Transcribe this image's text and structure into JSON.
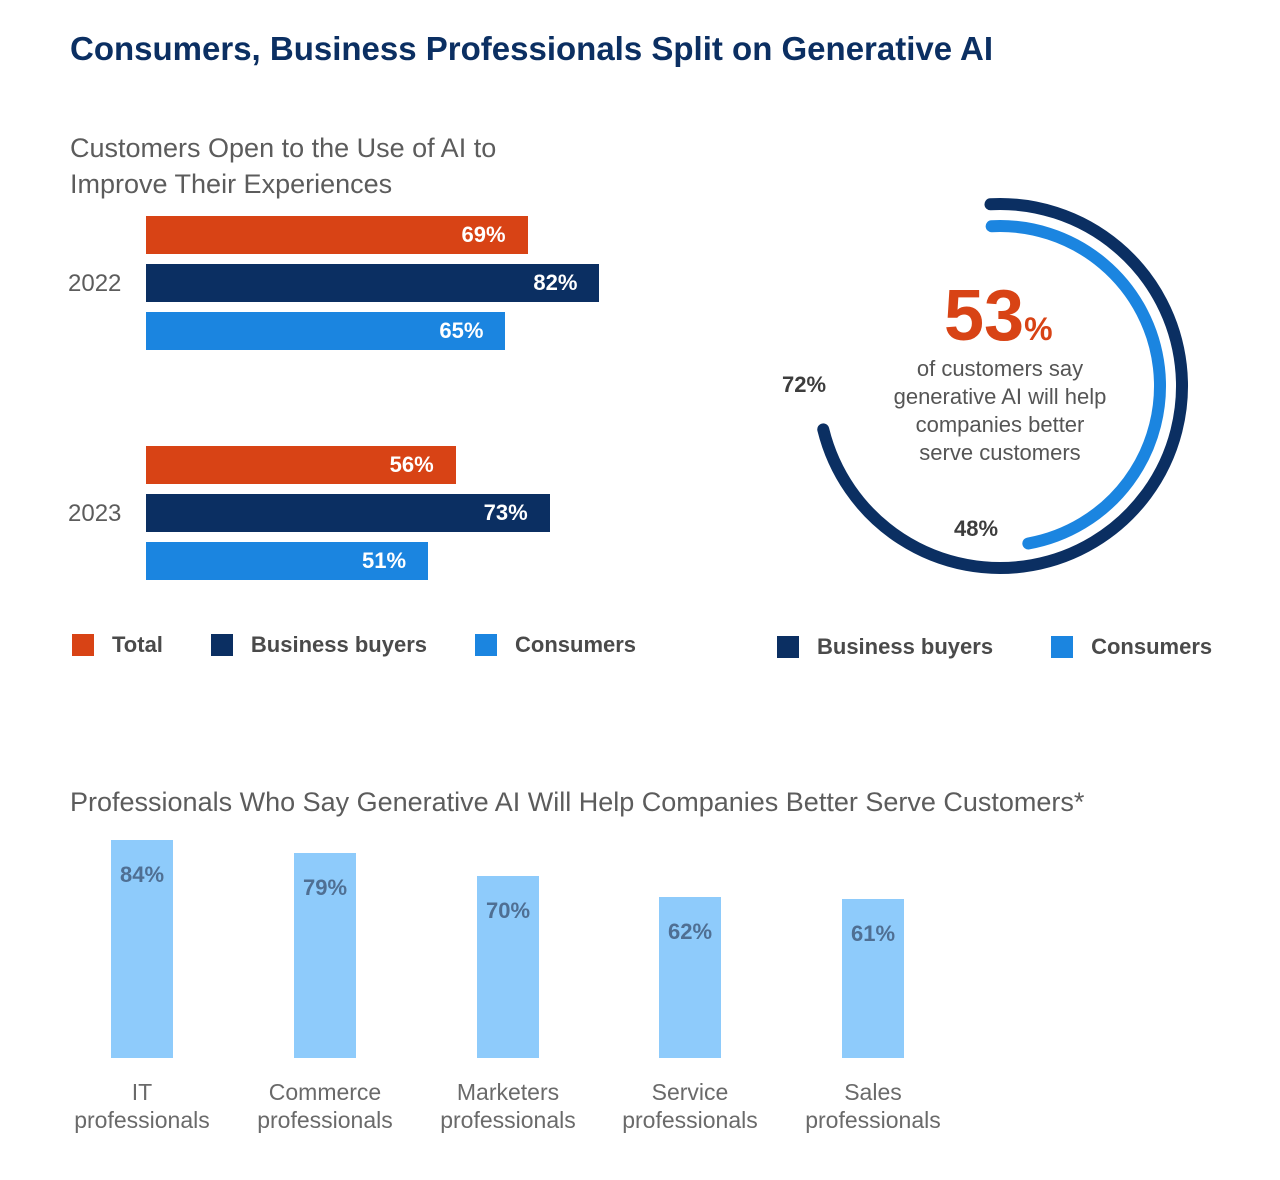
{
  "title": "Consumers, Business Professionals Split on Generative AI",
  "colors": {
    "total": "#d84315",
    "business_buyers": "#0b2f62",
    "consumers": "#1b85e0",
    "professionals": "#8ecbfb"
  },
  "chart_data": [
    {
      "type": "bar",
      "orientation": "horizontal",
      "title": "Customers Open to the Use of AI to Improve Their Experiences",
      "categories": [
        "2022",
        "2023"
      ],
      "series": [
        {
          "name": "Total",
          "values": [
            69,
            56
          ],
          "labels": [
            "69%",
            "56%"
          ]
        },
        {
          "name": "Business buyers",
          "values": [
            82,
            73
          ],
          "labels": [
            "82%",
            "73%"
          ]
        },
        {
          "name": "Consumers",
          "values": [
            65,
            51
          ],
          "labels": [
            "65%",
            "51%"
          ]
        }
      ],
      "legend": [
        "Total",
        "Business buyers",
        "Consumers"
      ],
      "legend_position": "bottom"
    },
    {
      "type": "radial",
      "headline_value": 53,
      "headline_number": "53",
      "headline_unit": "%",
      "headline_text": "of customers say generative AI will help companies better serve customers",
      "series": [
        {
          "name": "Business buyers",
          "value": 72,
          "label": "72%"
        },
        {
          "name": "Consumers",
          "value": 48,
          "label": "48%"
        }
      ],
      "legend": [
        "Business buyers",
        "Consumers"
      ],
      "legend_position": "bottom"
    },
    {
      "type": "bar",
      "orientation": "vertical",
      "title": "Professionals Who Say Generative AI Will Help Companies Better Serve Customers*",
      "categories": [
        [
          "IT",
          "professionals"
        ],
        [
          "Commerce",
          "professionals"
        ],
        [
          "Marketers",
          "professionals"
        ],
        [
          "Service",
          "professionals"
        ],
        [
          "Sales",
          "professionals"
        ]
      ],
      "values": [
        84,
        79,
        70,
        62,
        61
      ],
      "labels": [
        "84%",
        "79%",
        "70%",
        "62%",
        "61%"
      ]
    }
  ]
}
